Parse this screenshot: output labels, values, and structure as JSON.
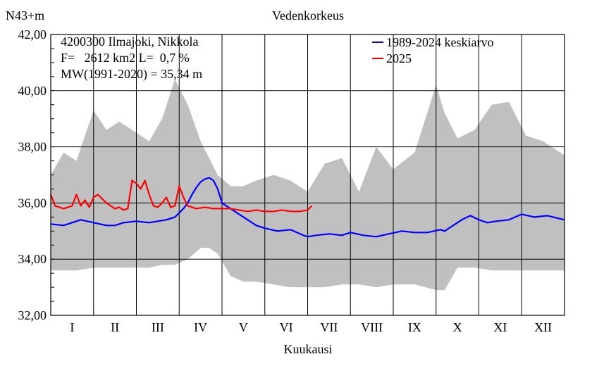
{
  "chart_data": {
    "type": "line",
    "title": "Vedenkorkeus",
    "ylabel": "N43+m",
    "xlabel": "Kuukausi",
    "ylim": [
      32,
      42
    ],
    "yticks": [
      "32,00",
      "34,00",
      "36,00",
      "38,00",
      "40,00",
      "42,00"
    ],
    "ytick_values": [
      32,
      34,
      36,
      38,
      40,
      42
    ],
    "categories": [
      "I",
      "II",
      "III",
      "IV",
      "V",
      "VI",
      "VII",
      "VIII",
      "IX",
      "X",
      "XI",
      "XII"
    ],
    "grid": true,
    "legend_position": "top-right",
    "info_lines": [
      "4200300 Ilmajoki, Nikkola",
      "F=   2612 km2 L=  0,7 %",
      "MW(1991-2020) = 35,34 m"
    ],
    "x_unit_note": "x values are months (0 = start of January, 12 = end of December)",
    "range_band": {
      "color": "#c0c0c0",
      "x": [
        0,
        0.3,
        0.6,
        1.0,
        1.3,
        1.6,
        2.0,
        2.3,
        2.6,
        2.9,
        3.2,
        3.5,
        3.7,
        3.9,
        4.2,
        4.5,
        4.8,
        5.2,
        5.6,
        6.0,
        6.4,
        6.8,
        7.2,
        7.6,
        8.0,
        8.5,
        9.0,
        9.2,
        9.5,
        9.9,
        10.3,
        10.7,
        11.1,
        11.5,
        12.0
      ],
      "min": [
        33.6,
        33.6,
        33.6,
        33.7,
        33.7,
        33.7,
        33.7,
        33.7,
        33.8,
        33.8,
        34.0,
        34.4,
        34.4,
        34.2,
        33.4,
        33.2,
        33.2,
        33.1,
        33.0,
        33.0,
        33.0,
        33.1,
        33.1,
        33.0,
        33.1,
        33.1,
        32.9,
        32.9,
        33.7,
        33.7,
        33.6,
        33.6,
        33.6,
        33.6,
        33.6
      ],
      "max": [
        37.0,
        37.8,
        37.5,
        39.3,
        38.6,
        38.9,
        38.5,
        38.2,
        39.0,
        40.4,
        39.5,
        38.2,
        37.6,
        37.0,
        36.6,
        36.6,
        36.8,
        37.0,
        36.8,
        36.4,
        37.4,
        37.6,
        36.4,
        38.0,
        37.2,
        37.8,
        40.2,
        39.2,
        38.3,
        38.6,
        39.5,
        39.6,
        38.4,
        38.2,
        37.7
      ]
    },
    "series": [
      {
        "name": "1989-2024 keskiarvo",
        "color": "#0000ff",
        "x": [
          0,
          0.3,
          0.5,
          0.7,
          1.0,
          1.3,
          1.5,
          1.7,
          2.0,
          2.3,
          2.5,
          2.7,
          2.9,
          3.0,
          3.1,
          3.2,
          3.3,
          3.4,
          3.5,
          3.6,
          3.7,
          3.8,
          3.9,
          4.0,
          4.2,
          4.4,
          4.6,
          4.8,
          5.0,
          5.3,
          5.6,
          5.9,
          6.0,
          6.2,
          6.5,
          6.8,
          7.0,
          7.3,
          7.6,
          7.9,
          8.2,
          8.5,
          8.8,
          9.1,
          9.2,
          9.4,
          9.6,
          9.8,
          10.0,
          10.2,
          10.4,
          10.7,
          11.0,
          11.3,
          11.6,
          12.0
        ],
        "y": [
          35.25,
          35.2,
          35.3,
          35.4,
          35.3,
          35.2,
          35.2,
          35.3,
          35.35,
          35.3,
          35.35,
          35.4,
          35.5,
          35.65,
          35.8,
          36.0,
          36.3,
          36.55,
          36.75,
          36.85,
          36.9,
          36.8,
          36.5,
          36.0,
          35.8,
          35.6,
          35.4,
          35.2,
          35.1,
          35.0,
          35.05,
          34.85,
          34.8,
          34.85,
          34.9,
          34.85,
          34.95,
          34.85,
          34.8,
          34.9,
          35.0,
          34.95,
          34.95,
          35.05,
          35.0,
          35.2,
          35.4,
          35.55,
          35.4,
          35.3,
          35.35,
          35.4,
          35.6,
          35.5,
          35.55,
          35.4
        ]
      },
      {
        "name": "2025",
        "color": "#ff0000",
        "x": [
          0,
          0.1,
          0.3,
          0.5,
          0.6,
          0.7,
          0.8,
          0.9,
          1.0,
          1.1,
          1.3,
          1.5,
          1.6,
          1.7,
          1.8,
          1.9,
          2.0,
          2.1,
          2.2,
          2.3,
          2.4,
          2.5,
          2.6,
          2.7,
          2.8,
          2.9,
          3.0,
          3.1,
          3.2,
          3.4,
          3.6,
          3.8,
          4.0,
          4.2,
          4.4,
          4.6,
          4.8,
          5.0,
          5.2,
          5.4,
          5.6,
          5.8,
          6.0,
          6.1
        ],
        "y": [
          36.3,
          35.9,
          35.8,
          35.9,
          36.3,
          35.9,
          36.1,
          35.85,
          36.2,
          36.3,
          36.0,
          35.8,
          35.85,
          35.75,
          35.8,
          36.8,
          36.7,
          36.5,
          36.8,
          36.3,
          35.9,
          35.85,
          36.0,
          36.2,
          35.85,
          35.9,
          36.6,
          36.2,
          35.9,
          35.8,
          35.85,
          35.8,
          35.8,
          35.8,
          35.75,
          35.7,
          35.75,
          35.7,
          35.7,
          35.75,
          35.7,
          35.7,
          35.75,
          35.9
        ]
      }
    ]
  }
}
